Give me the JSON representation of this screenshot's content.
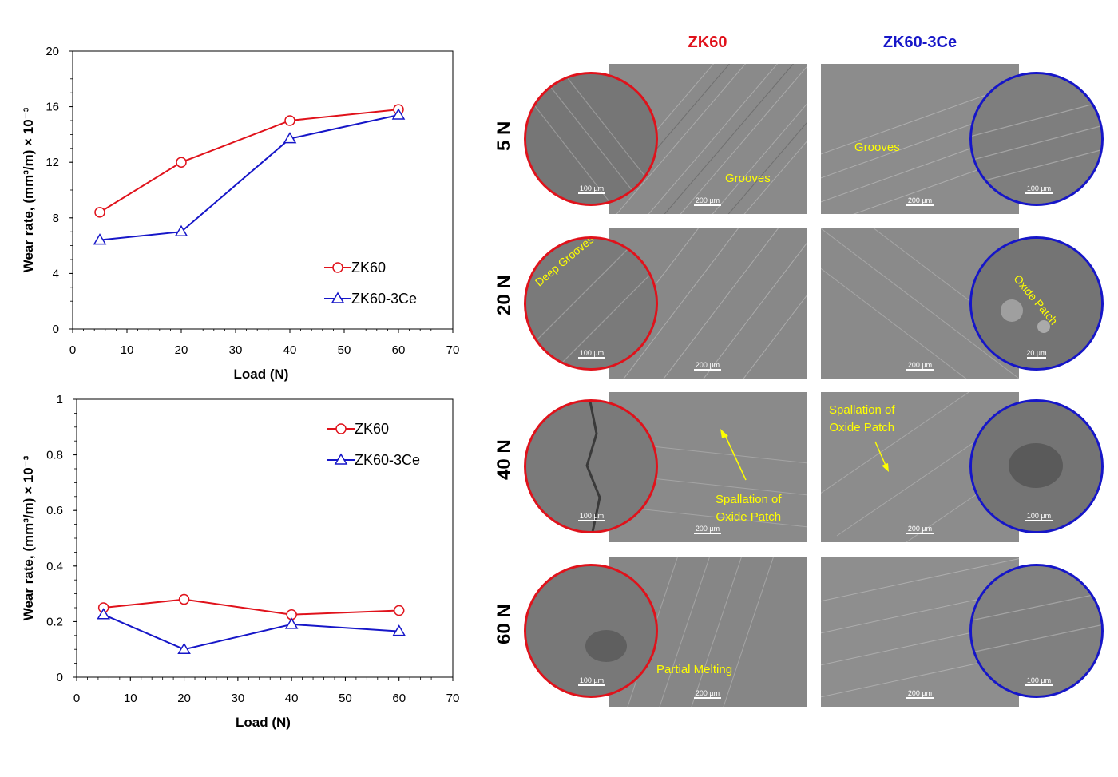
{
  "chart_data": [
    {
      "type": "line",
      "title": "",
      "xlabel": "Load (N)",
      "ylabel": "Wear rate, (mm³/m) × 10⁻³",
      "xlim": [
        0,
        70
      ],
      "ylim": [
        0,
        20
      ],
      "xticks": [
        "0",
        "10",
        "20",
        "30",
        "40",
        "50",
        "60",
        "70"
      ],
      "yticks": [
        "0",
        "4",
        "8",
        "12",
        "16",
        "20"
      ],
      "grid": false,
      "legend": "bottom-right",
      "series": [
        {
          "name": "ZK60",
          "color": "#e0121b",
          "marker": "circle",
          "x": [
            5,
            20,
            40,
            60
          ],
          "y": [
            8.4,
            12.0,
            15.0,
            15.8
          ]
        },
        {
          "name": "ZK60-3Ce",
          "color": "#1616c8",
          "marker": "triangle",
          "x": [
            5,
            20,
            40,
            60
          ],
          "y": [
            6.4,
            7.0,
            13.7,
            15.4
          ]
        }
      ]
    },
    {
      "type": "line",
      "title": "",
      "xlabel": "Load (N)",
      "ylabel": "Wear rate, (mm³/m) × 10⁻³",
      "xlim": [
        0,
        70
      ],
      "ylim": [
        0,
        1
      ],
      "xticks": [
        "0",
        "10",
        "20",
        "30",
        "40",
        "50",
        "60",
        "70"
      ],
      "yticks": [
        "0",
        "0.2",
        "0.4",
        "0.6",
        "0.8",
        "1"
      ],
      "grid": false,
      "legend": "top-right",
      "series": [
        {
          "name": "ZK60",
          "color": "#e0121b",
          "marker": "circle",
          "x": [
            5,
            20,
            40,
            60
          ],
          "y": [
            0.25,
            0.28,
            0.225,
            0.24
          ]
        },
        {
          "name": "ZK60-3Ce",
          "color": "#1616c8",
          "marker": "triangle",
          "x": [
            5,
            20,
            40,
            60
          ],
          "y": [
            0.225,
            0.1,
            0.19,
            0.165
          ]
        }
      ]
    }
  ],
  "micrographs": {
    "columns": [
      {
        "label": "ZK60",
        "color": "#e0121b"
      },
      {
        "label": "ZK60-3Ce",
        "color": "#1616c8"
      }
    ],
    "rows": [
      {
        "load": "5 N",
        "zk60": {
          "annotation": "Grooves",
          "scale_main": "200 µm",
          "scale_inset": "100 µm"
        },
        "zk60ce": {
          "annotation": "Grooves",
          "scale_main": "200 µm",
          "scale_inset": "100 µm"
        }
      },
      {
        "load": "20 N",
        "zk60": {
          "annotation": "Deep Grooves",
          "scale_main": "200 µm",
          "scale_inset": "100 µm"
        },
        "zk60ce": {
          "annotation": "Oxide Patch",
          "scale_main": "200 µm",
          "scale_inset": "20 µm"
        }
      },
      {
        "load": "40 N",
        "zk60": {
          "annotation_line1": "Spallation of",
          "annotation_line2": "Oxide Patch",
          "scale_main": "200 µm",
          "scale_inset": "100 µm"
        },
        "zk60ce": {
          "annotation_line1": "Spallation of",
          "annotation_line2": "Oxide Patch",
          "scale_main": "200 µm",
          "scale_inset": "100 µm"
        }
      },
      {
        "load": "60 N",
        "zk60": {
          "annotation": "Partial Melting",
          "scale_main": "200 µm",
          "scale_inset": "100 µm"
        },
        "zk60ce": {
          "annotation": "",
          "scale_main": "200 µm",
          "scale_inset": "100 µm"
        }
      }
    ]
  }
}
